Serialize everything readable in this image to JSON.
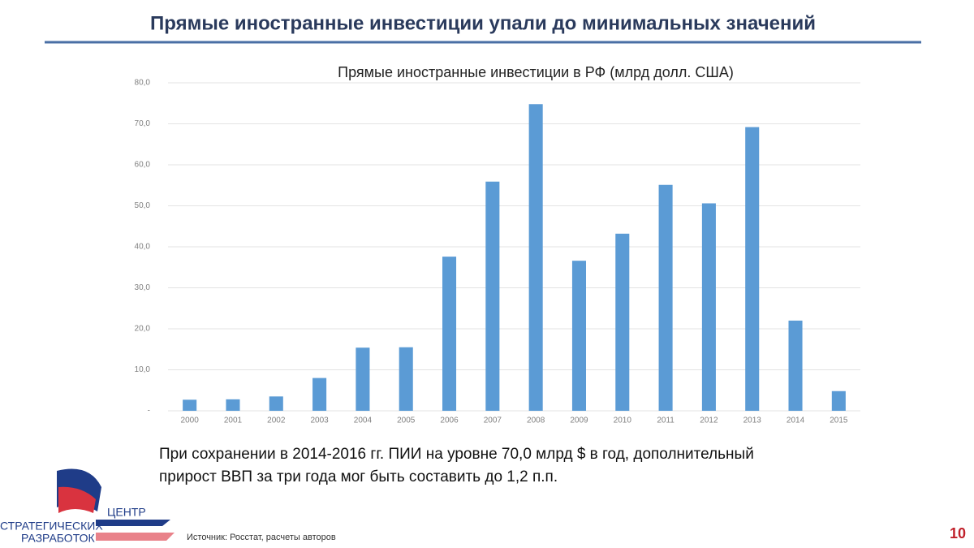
{
  "slide": {
    "title": "Прямые иностранные инвестиции упали до минимальных значений",
    "note": [
      "При сохранении в 2014-2016 гг. ПИИ на уровне 70,0 млрд $ в год, дополнительный",
      "прирост ВВП за три года мог быть составить до 1,2 п.п."
    ],
    "source": "Источник: Росстат, расчеты авторов",
    "page_number": "10",
    "logo": [
      "ЦЕНТР",
      "СТРАТЕГИЧЕСКИХ",
      "РАЗРАБОТОК"
    ]
  },
  "chart_data": {
    "type": "bar",
    "title": "Прямые иностранные инвестиции в РФ (млрд долл. США)",
    "categories": [
      "2000",
      "2001",
      "2002",
      "2003",
      "2004",
      "2005",
      "2006",
      "2007",
      "2008",
      "2009",
      "2010",
      "2011",
      "2012",
      "2013",
      "2014",
      "2015"
    ],
    "values": [
      2.7,
      2.8,
      3.5,
      8.0,
      15.4,
      15.5,
      37.6,
      55.9,
      74.8,
      36.6,
      43.2,
      55.1,
      50.6,
      69.2,
      22.0,
      4.8
    ],
    "color": "#5b9bd5",
    "ylim": [
      0,
      80
    ],
    "yticks": [
      {
        "value": 0,
        "label": "-"
      },
      {
        "value": 10,
        "label": "10,0"
      },
      {
        "value": 20,
        "label": "20,0"
      },
      {
        "value": 30,
        "label": "30,0"
      },
      {
        "value": 40,
        "label": "40,0"
      },
      {
        "value": 50,
        "label": "50,0"
      },
      {
        "value": 60,
        "label": "60,0"
      },
      {
        "value": 70,
        "label": "70,0"
      },
      {
        "value": 80,
        "label": "80,0"
      }
    ],
    "grid": true
  }
}
